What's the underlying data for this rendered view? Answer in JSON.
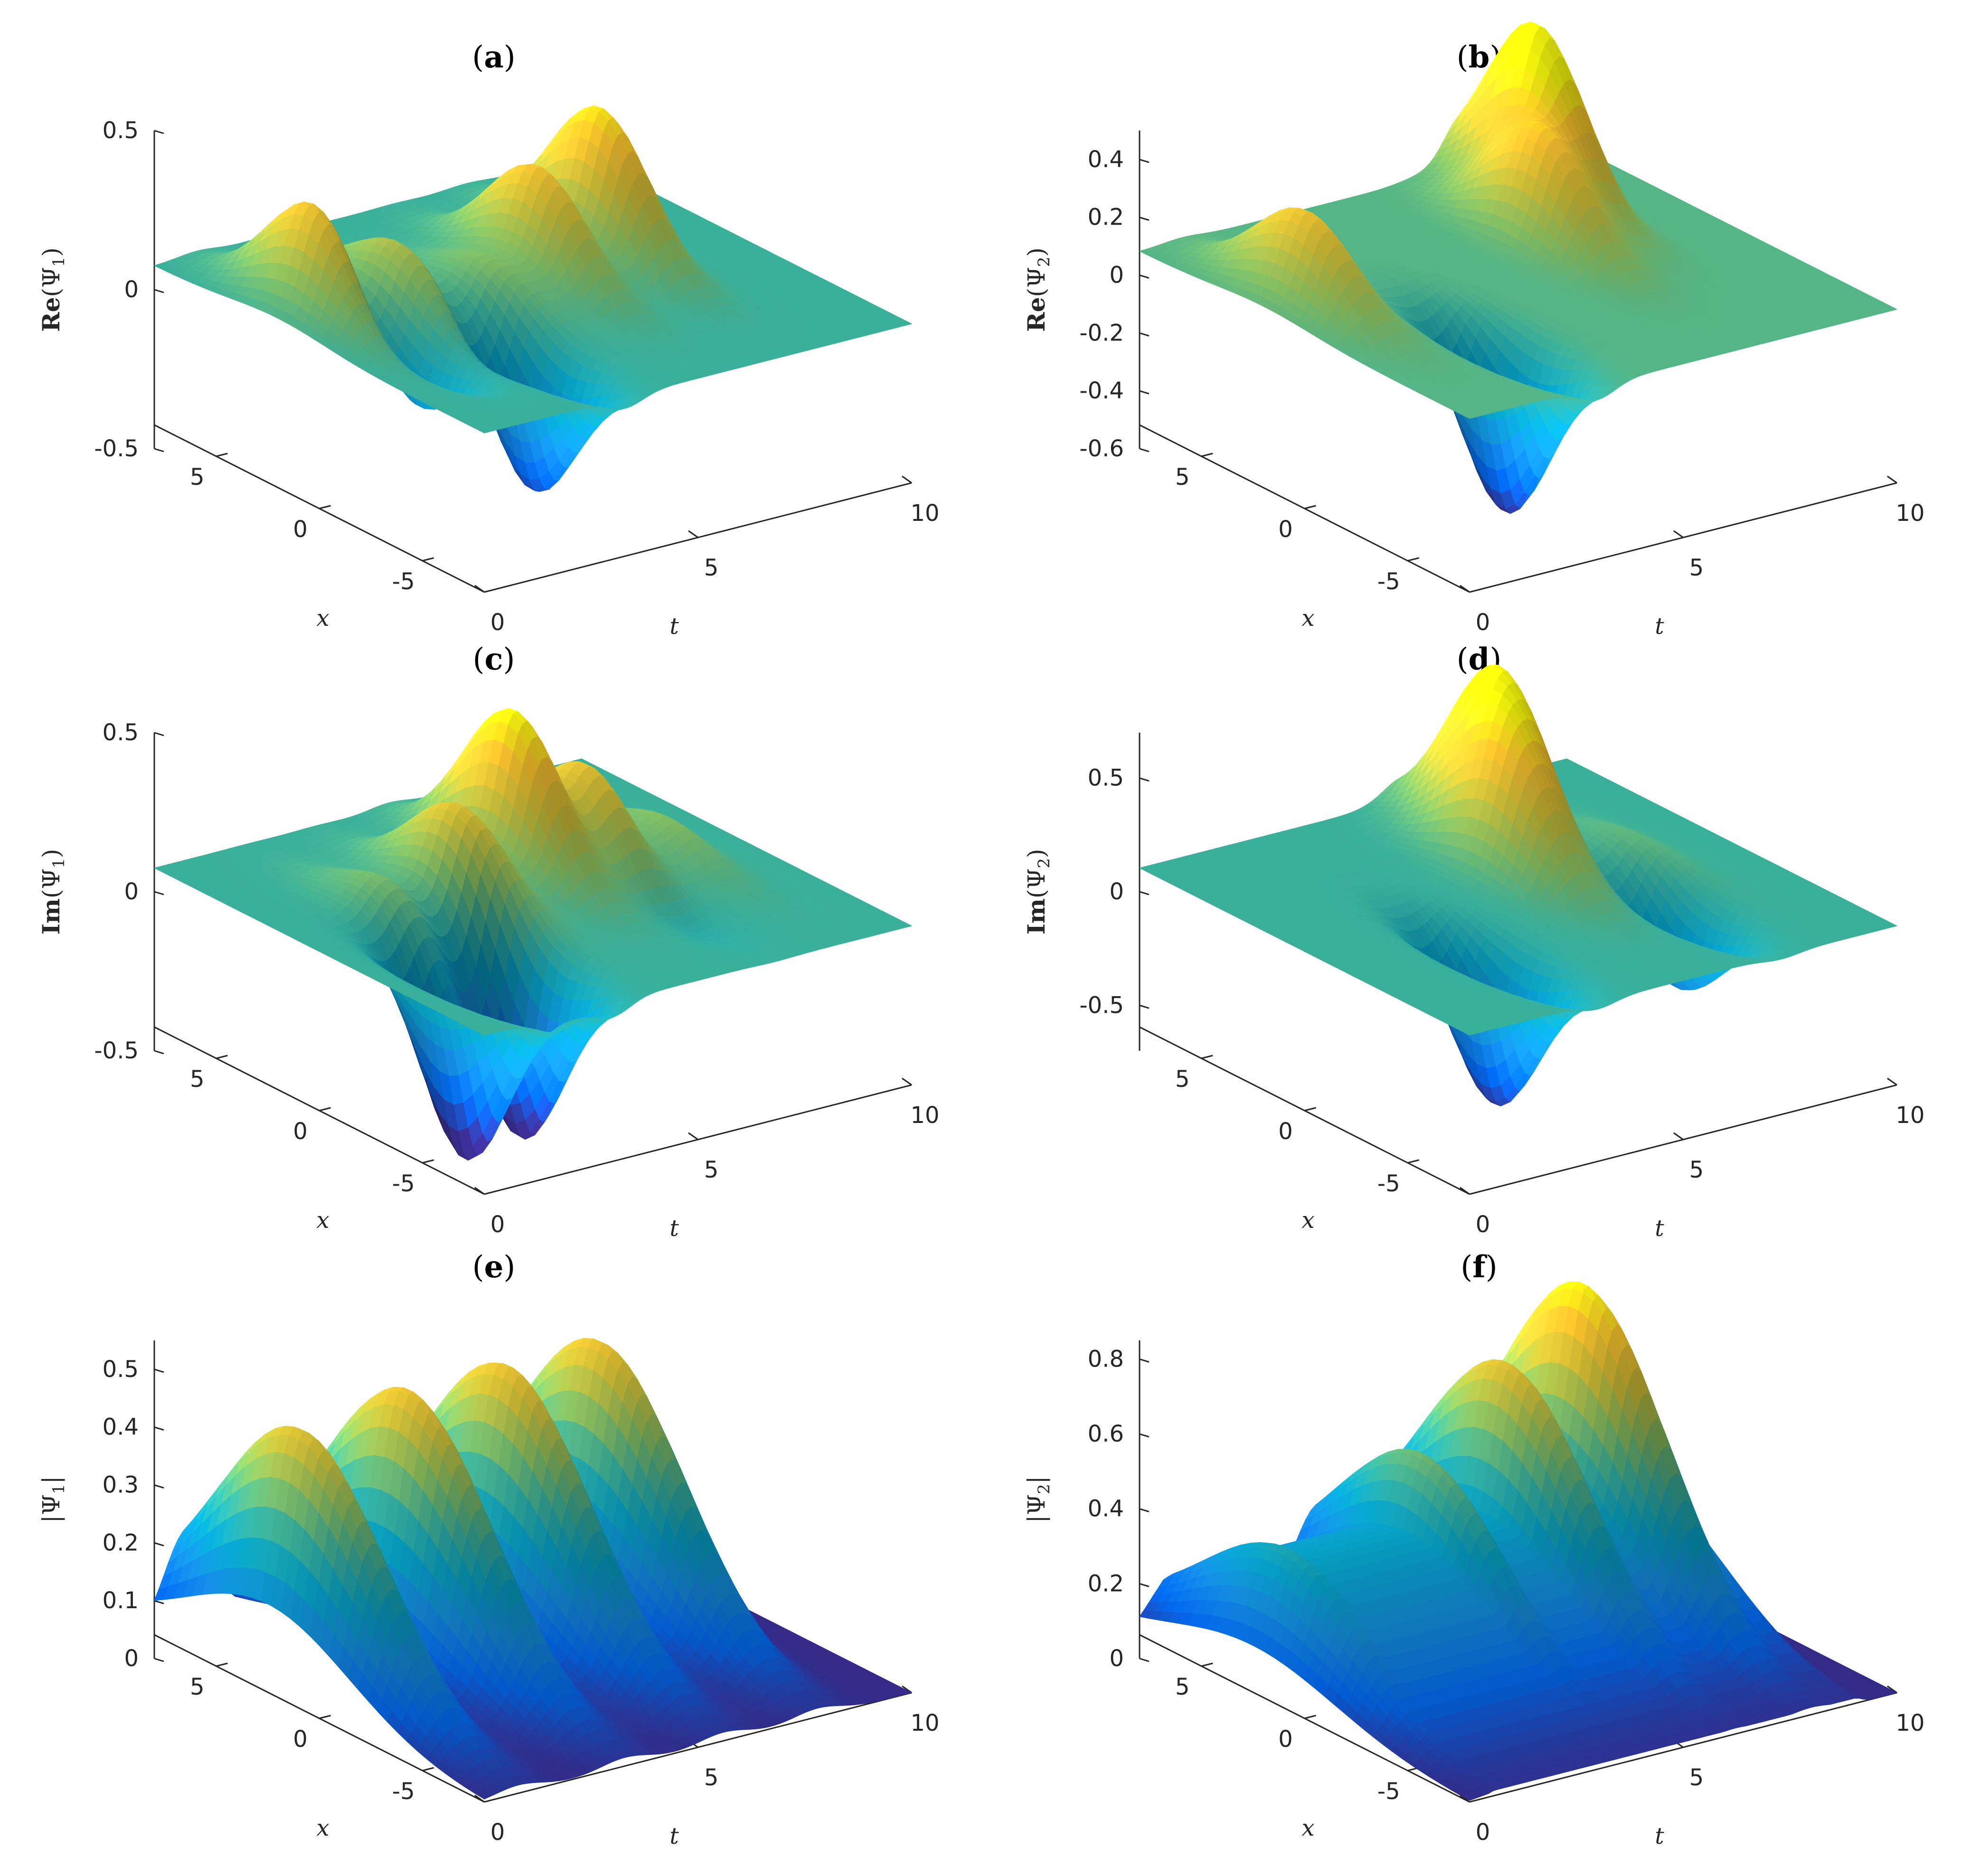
{
  "figure": {
    "panels": [
      {
        "id": "a",
        "title": "(a)",
        "letter": "a",
        "zlabel_bold": "Re",
        "zlabel_arg": "(Ψ",
        "zlabel_sub": "1",
        "zlabel_close": ")",
        "zticks": [
          "0.5",
          "0",
          "-0.5"
        ]
      },
      {
        "id": "b",
        "title": "(b)",
        "letter": "b",
        "zlabel_bold": "Re",
        "zlabel_arg": "(Ψ",
        "zlabel_sub": "2",
        "zlabel_close": ")",
        "zticks": [
          "0.4",
          "0.2",
          "0",
          "-0.2",
          "-0.4",
          "-0.6"
        ]
      },
      {
        "id": "c",
        "title": "(c)",
        "letter": "c",
        "zlabel_bold": "Im",
        "zlabel_arg": "(Ψ",
        "zlabel_sub": "1",
        "zlabel_close": ")",
        "zticks": [
          "0.5",
          "0",
          "-0.5"
        ]
      },
      {
        "id": "d",
        "title": "(d)",
        "letter": "d",
        "zlabel_bold": "Im",
        "zlabel_arg": "(Ψ",
        "zlabel_sub": "2",
        "zlabel_close": ")",
        "zticks": [
          "0.5",
          "0",
          "-0.5"
        ]
      },
      {
        "id": "e",
        "title": "(e)",
        "letter": "e",
        "zlabel_bold": "",
        "zlabel_arg": "|Ψ",
        "zlabel_sub": "1",
        "zlabel_close": "|",
        "zticks": [
          "0.5",
          "0.4",
          "0.3",
          "0.2",
          "0.1",
          "0"
        ]
      },
      {
        "id": "f",
        "title": "(f)",
        "letter": "f",
        "zlabel_bold": "",
        "zlabel_arg": "|Ψ",
        "zlabel_sub": "2",
        "zlabel_close": "|",
        "zticks": [
          "0.8",
          "0.6",
          "0.4",
          "0.2",
          "0"
        ]
      }
    ],
    "x_axis_label": "x",
    "t_axis_label": "t",
    "x_ticks": [
      "5",
      "0",
      "-5"
    ],
    "t_ticks": [
      "0",
      "5",
      "10"
    ]
  },
  "chart_data": [
    {
      "panel": "a",
      "type": "surface",
      "title": "(a)",
      "xlabel": "x",
      "tlabel": "t",
      "zlabel": "Re(Ψ1)",
      "xlim": [
        -8,
        8
      ],
      "tlim": [
        0,
        10
      ],
      "zlim": [
        -0.5,
        0.5
      ],
      "peaks": [
        {
          "t": 1.0,
          "x": 2.0,
          "z": 0.38
        },
        {
          "t": 2.6,
          "x": 1.5,
          "z": 0.2
        },
        {
          "t": 4.2,
          "x": 0.5,
          "z": 0.12
        },
        {
          "t": 5.6,
          "x": 1.0,
          "z": 0.35
        },
        {
          "t": 7.3,
          "x": 1.5,
          "z": 0.46
        }
      ],
      "troughs": [
        {
          "t": 1.5,
          "x": -1.0,
          "z": -0.25
        },
        {
          "t": 3.3,
          "x": -3.5,
          "z": -0.45
        }
      ],
      "colormap": "parula",
      "grid": false
    },
    {
      "panel": "b",
      "type": "surface",
      "title": "(b)",
      "xlabel": "x",
      "tlabel": "t",
      "zlabel": "Re(Ψ2)",
      "xlim": [
        -8,
        8
      ],
      "tlim": [
        0,
        10
      ],
      "zlim": [
        -0.6,
        0.5
      ],
      "peaks": [
        {
          "t": 1.0,
          "x": 2.0,
          "z": 0.32
        },
        {
          "t": 6.5,
          "x": 2.0,
          "z": 0.38
        },
        {
          "t": 7.6,
          "x": 4.5,
          "z": 0.62
        }
      ],
      "troughs": [
        {
          "t": 3.0,
          "x": -3.5,
          "z": -0.6
        }
      ],
      "colormap": "parula",
      "grid": false
    },
    {
      "panel": "c",
      "type": "surface",
      "title": "(c)",
      "xlabel": "x",
      "tlabel": "t",
      "zlabel": "Im(Ψ1)",
      "xlim": [
        -8,
        8
      ],
      "tlim": [
        0,
        10
      ],
      "zlim": [
        -0.5,
        0.5
      ],
      "peaks": [
        {
          "t": 2.2,
          "x": 1.0,
          "z": 0.12
        },
        {
          "t": 3.8,
          "x": 1.0,
          "z": 0.3
        },
        {
          "t": 5.5,
          "x": 2.0,
          "z": 0.5
        },
        {
          "t": 6.8,
          "x": 1.0,
          "z": 0.32
        },
        {
          "t": 8.3,
          "x": 0.5,
          "z": 0.12
        }
      ],
      "troughs": [
        {
          "t": 1.7,
          "x": -3.5,
          "z": -0.6
        },
        {
          "t": 3.0,
          "x": -3.5,
          "z": -0.58
        },
        {
          "t": 6.8,
          "x": -3.0,
          "z": -0.07
        }
      ],
      "colormap": "parula",
      "grid": false
    },
    {
      "panel": "d",
      "type": "surface",
      "title": "(d)",
      "xlabel": "x",
      "tlabel": "t",
      "zlabel": "Im(Ψ2)",
      "xlim": [
        -8,
        8
      ],
      "tlim": [
        0,
        10
      ],
      "zlim": [
        -0.7,
        0.7
      ],
      "peaks": [
        {
          "t": 5.5,
          "x": 1.5,
          "z": 0.45
        },
        {
          "t": 6.2,
          "x": 3.5,
          "z": 0.7
        },
        {
          "t": 8.0,
          "x": 0.5,
          "z": 0.1
        }
      ],
      "troughs": [
        {
          "t": 3.0,
          "x": -3.0,
          "z": -0.68
        },
        {
          "t": 7.3,
          "x": -3.0,
          "z": -0.38
        }
      ],
      "colormap": "parula",
      "grid": false
    },
    {
      "panel": "e",
      "type": "surface",
      "title": "(e)",
      "xlabel": "x",
      "tlabel": "t",
      "zlabel": "|Ψ1|",
      "xlim": [
        -8,
        8
      ],
      "tlim": [
        0,
        10
      ],
      "zlim": [
        0,
        0.55
      ],
      "peaks": [
        {
          "t": 0.8,
          "x": 2.5,
          "z": 0.44
        },
        {
          "t": 3.3,
          "x": 2.5,
          "z": 0.46
        },
        {
          "t": 5.6,
          "x": 2.5,
          "z": 0.46
        },
        {
          "t": 7.8,
          "x": 2.5,
          "z": 0.46
        }
      ],
      "colormap": "parula",
      "grid": false
    },
    {
      "panel": "f",
      "type": "surface",
      "title": "(f)",
      "xlabel": "x",
      "tlabel": "t",
      "zlabel": "|Ψ2|",
      "xlim": [
        -8,
        8
      ],
      "tlim": [
        0,
        10
      ],
      "zlim": [
        0,
        0.85
      ],
      "peaks": [
        {
          "t": 0.8,
          "x": 2.5,
          "z": 0.36
        },
        {
          "t": 4.2,
          "x": 3.0,
          "z": 0.5
        },
        {
          "t": 6.2,
          "x": 3.0,
          "z": 0.68
        },
        {
          "t": 8.0,
          "x": 3.0,
          "z": 0.84
        }
      ],
      "colormap": "parula",
      "grid": false
    }
  ]
}
